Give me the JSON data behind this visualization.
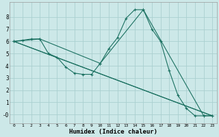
{
  "xlabel": "Humidex (Indice chaleur)",
  "bg_color": "#cce8e8",
  "grid_color": "#aad0d0",
  "line_color": "#1a7060",
  "xlim": [
    -0.5,
    23.5
  ],
  "ylim": [
    -0.7,
    9.2
  ],
  "yticks": [
    0,
    1,
    2,
    3,
    4,
    5,
    6,
    7,
    8
  ],
  "ytick_labels": [
    "-0",
    "1",
    "2",
    "3",
    "4",
    "5",
    "6",
    "7",
    "8"
  ],
  "xticks": [
    0,
    1,
    2,
    3,
    4,
    5,
    6,
    7,
    8,
    9,
    10,
    11,
    12,
    13,
    14,
    15,
    16,
    17,
    18,
    19,
    20,
    21,
    22,
    23
  ],
  "series": [
    {
      "x": [
        0,
        1,
        2,
        3,
        4,
        5,
        6,
        7,
        8,
        9,
        10,
        11,
        12,
        13,
        14,
        15,
        16,
        17,
        18,
        19,
        20,
        21,
        22,
        23
      ],
      "y": [
        6.0,
        6.1,
        6.2,
        6.2,
        5.0,
        4.7,
        3.9,
        3.4,
        3.3,
        3.3,
        4.2,
        5.4,
        6.3,
        7.9,
        8.6,
        8.6,
        7.0,
        6.0,
        3.6,
        1.6,
        0.5,
        -0.1,
        -0.1,
        -0.1
      ],
      "marker": true
    },
    {
      "x": [
        0,
        3,
        10,
        15,
        22,
        23
      ],
      "y": [
        6.0,
        6.2,
        4.2,
        8.6,
        -0.1,
        -0.1
      ],
      "marker": true
    },
    {
      "x": [
        0,
        23
      ],
      "y": [
        6.0,
        -0.1
      ],
      "marker": false
    },
    {
      "x": [
        0,
        23
      ],
      "y": [
        6.0,
        -0.1
      ],
      "marker": false
    }
  ]
}
